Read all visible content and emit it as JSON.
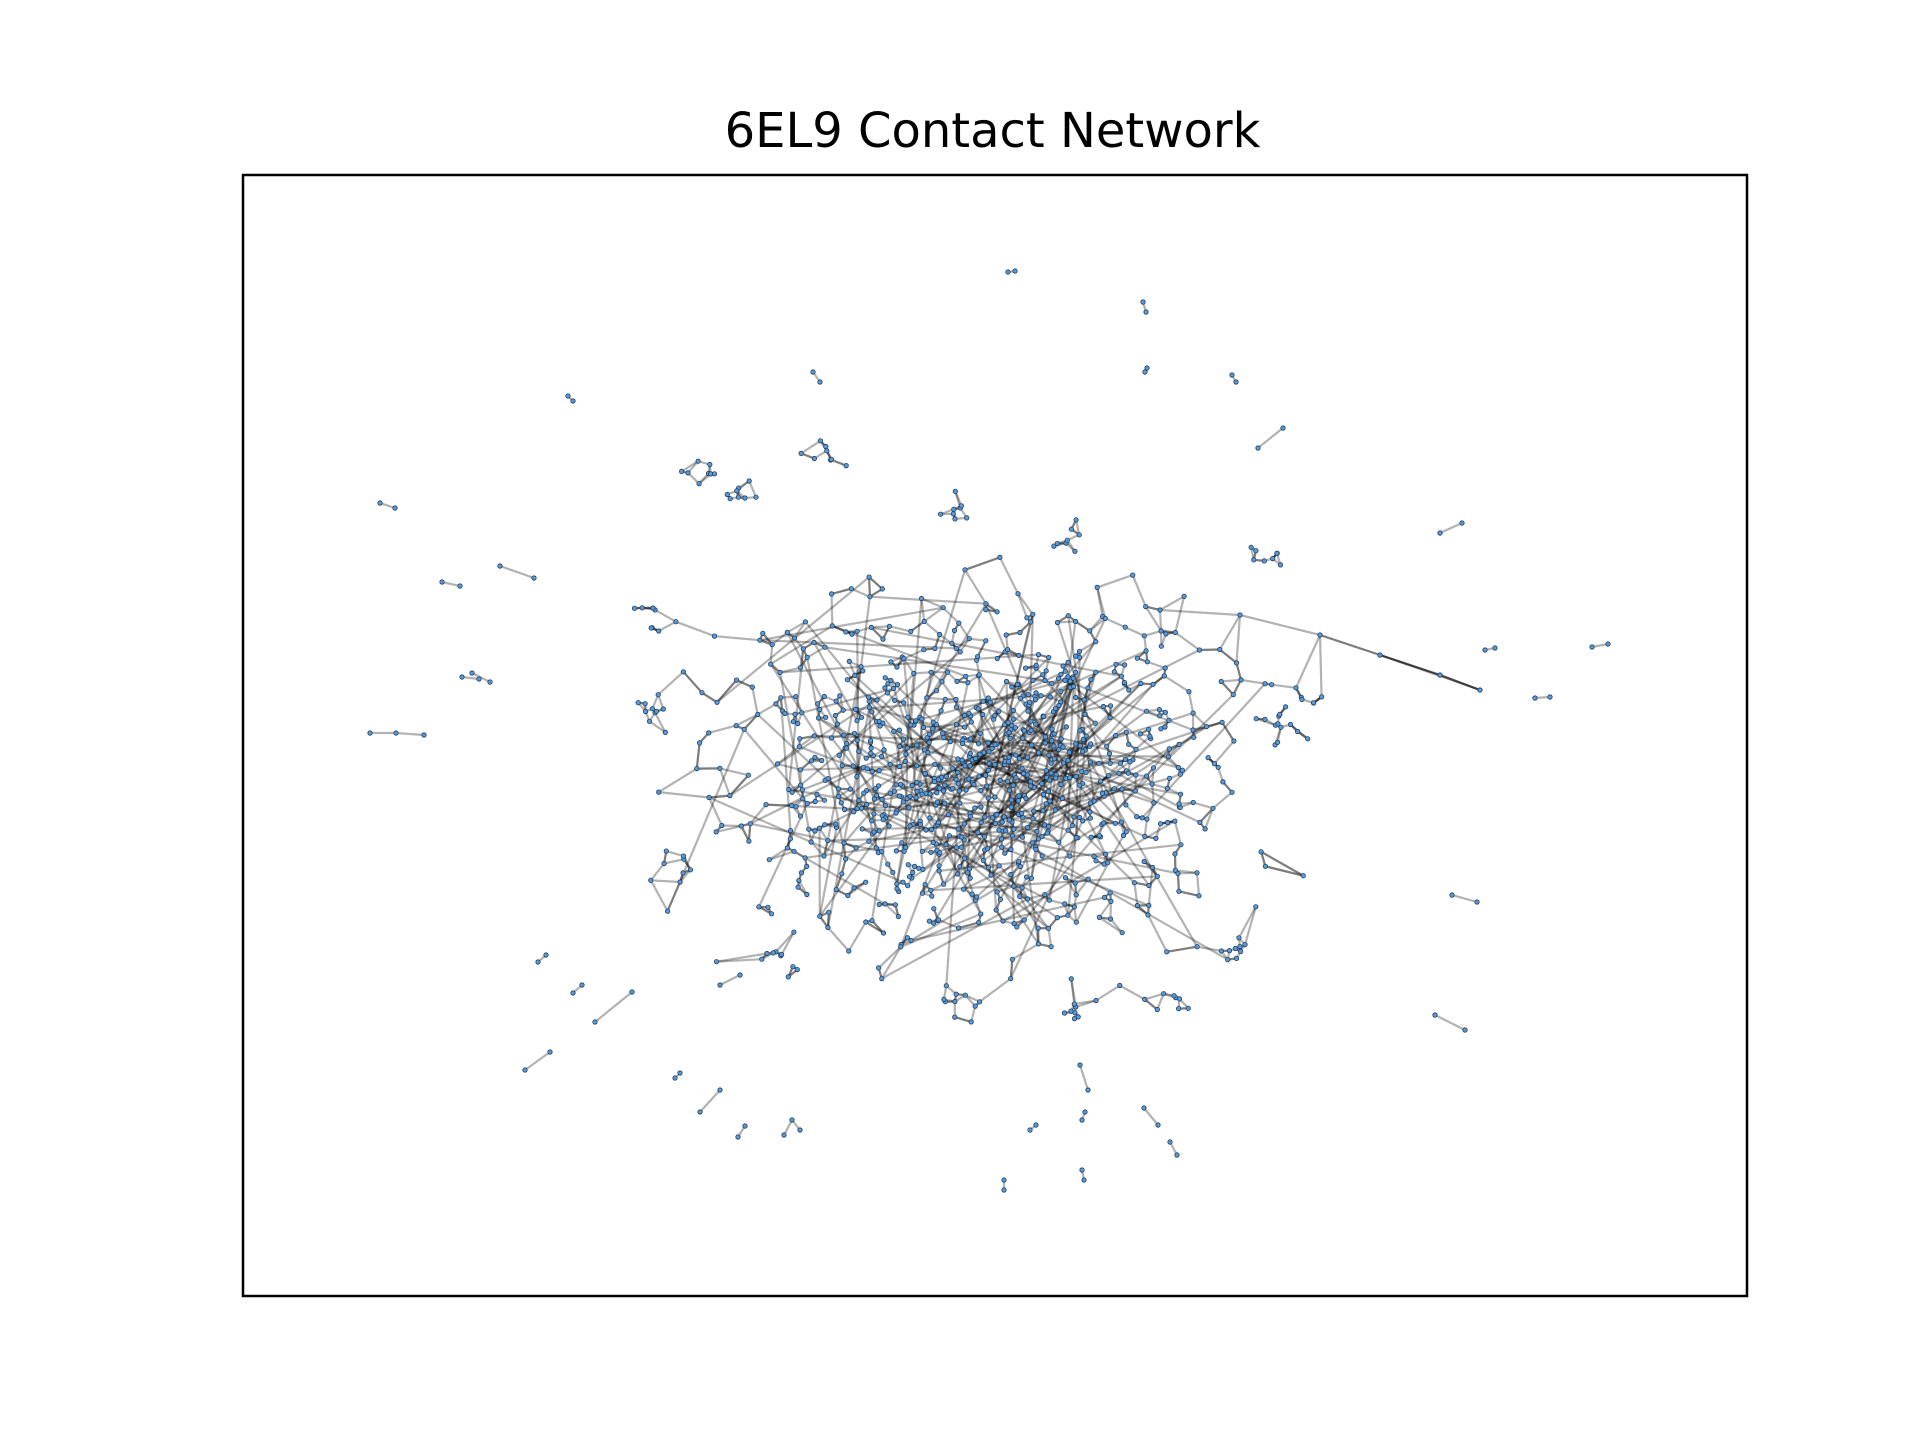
{
  "chart_data": {
    "type": "scatter",
    "title": "6EL9 Contact Network",
    "xlabel": "",
    "ylabel": "",
    "grid": false,
    "legend": "none",
    "axis_ticks": false,
    "node_color": "#5b9bd5",
    "node_edge_color": "#1f3f66",
    "edge_color": "#000000",
    "background": "#ffffff"
  }
}
